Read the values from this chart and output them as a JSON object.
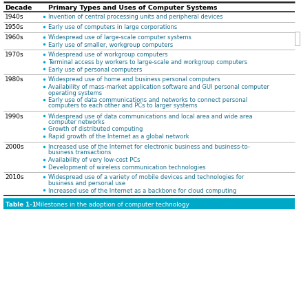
{
  "col1_header": "Decade",
  "col2_header": "Primary Types and Uses of Computer Systems",
  "rows": [
    {
      "decade": "1940s",
      "items": [
        [
          "Invention of central processing units and peripheral devices"
        ]
      ]
    },
    {
      "decade": "1950s",
      "items": [
        [
          "Early use of computers in large corporations"
        ]
      ]
    },
    {
      "decade": "1960s",
      "items": [
        [
          "Widespread use of large-scale computer systems"
        ],
        [
          "Early use of smaller, workgroup computers"
        ]
      ]
    },
    {
      "decade": "1970s",
      "items": [
        [
          "Widespread use of workgroup computers"
        ],
        [
          "Terminal access by workers to large-scale and workgroup computers"
        ],
        [
          "Early use of personal computers"
        ]
      ]
    },
    {
      "decade": "1980s",
      "items": [
        [
          "Widespread use of home and business personal computers"
        ],
        [
          "Availability of mass-market application software and GUI personal computer",
          "operating systems"
        ],
        [
          "Early use of data communications and networks to connect personal",
          "computers to each other and PCs to larger systems"
        ]
      ]
    },
    {
      "decade": "1990s",
      "items": [
        [
          "Widespread use of data communications and local area and wide area",
          "computer networks"
        ],
        [
          "Growth of distributed computing"
        ],
        [
          "Rapid growth of the Internet as a global network"
        ]
      ]
    },
    {
      "decade": "2000s",
      "items": [
        [
          "Increased use of the Internet for electronic business and business-to-",
          "business transactions"
        ],
        [
          "Availability of very low-cost PCs"
        ],
        [
          "Development of wireless communication technologies"
        ]
      ]
    },
    {
      "decade": "2010s",
      "items": [
        [
          "Widespread use of a variety of mobile devices and technologies for",
          "business and personal use"
        ],
        [
          "Increased use of the Internet as a backbone for cloud computing"
        ]
      ]
    }
  ],
  "caption_label": "Table 1-1",
  "caption_text": "  Milestones in the adoption of computer technology",
  "header_text_color": "#000000",
  "decade_text_color": "#000000",
  "item_text_color": "#1a6e8e",
  "bullet_color": "#00a8c8",
  "caption_bg": "#00a8c8",
  "caption_text_color": "#ffffff",
  "thick_border_color": "#222222",
  "thin_border_color": "#999999"
}
